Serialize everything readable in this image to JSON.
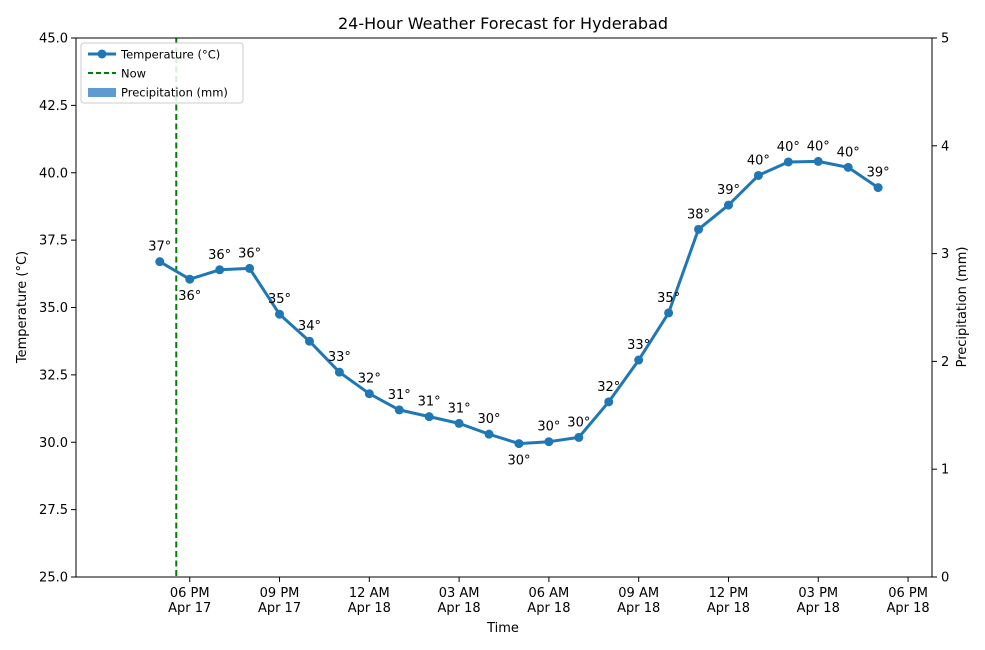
{
  "chart_data": {
    "type": "line",
    "title": "24-Hour Weather Forecast for Hyderabad",
    "xlabel": "Time",
    "ylabel": "Temperature (°C)",
    "ylabel_right": "Precipitation (mm)",
    "ylim": [
      25,
      45
    ],
    "ylim_right": [
      0,
      5
    ],
    "y_ticks": [
      "25.0",
      "27.5",
      "30.0",
      "32.5",
      "35.0",
      "37.5",
      "40.0",
      "42.5",
      "45.0"
    ],
    "y_tick_values": [
      25,
      27.5,
      30,
      32.5,
      35,
      37.5,
      40,
      42.5,
      45
    ],
    "y_right_ticks": [
      "0",
      "1",
      "2",
      "3",
      "4",
      "5"
    ],
    "y_right_tick_values": [
      0,
      1,
      2,
      3,
      4,
      5
    ],
    "x_ticks": [
      {
        "hour": 18,
        "time": "06 PM",
        "date": "Apr 17"
      },
      {
        "hour": 21,
        "time": "09 PM",
        "date": "Apr 17"
      },
      {
        "hour": 24,
        "time": "12 AM",
        "date": "Apr 18"
      },
      {
        "hour": 27,
        "time": "03 AM",
        "date": "Apr 18"
      },
      {
        "hour": 30,
        "time": "06 AM",
        "date": "Apr 18"
      },
      {
        "hour": 33,
        "time": "09 AM",
        "date": "Apr 18"
      },
      {
        "hour": 36,
        "time": "12 PM",
        "date": "Apr 18"
      },
      {
        "hour": 39,
        "time": "03 PM",
        "date": "Apr 18"
      },
      {
        "hour": 42,
        "time": "06 PM",
        "date": "Apr 18"
      }
    ],
    "x_range_hours": [
      14.2,
      42.8
    ],
    "now_hour": 17.55,
    "legend": {
      "placement": "top-left",
      "entries": [
        "Temperature (°C)",
        "Now",
        "Precipitation (mm)"
      ]
    },
    "series": [
      {
        "name": "Temperature (°C)",
        "color": "#1f77b4",
        "hours": [
          17,
          18,
          19,
          20,
          21,
          22,
          23,
          24,
          25,
          26,
          27,
          28,
          29,
          30,
          31,
          32,
          33,
          34,
          35,
          36,
          37,
          38,
          39,
          40,
          41
        ],
        "values": [
          36.7,
          36.05,
          36.4,
          36.45,
          34.75,
          33.75,
          32.6,
          31.8,
          31.2,
          30.95,
          30.7,
          30.3,
          29.95,
          30.02,
          30.18,
          31.5,
          33.05,
          34.8,
          37.9,
          38.8,
          39.9,
          40.4,
          40.42,
          40.2,
          39.45
        ],
        "labels": [
          "37°",
          "36°",
          "36°",
          "36°",
          "35°",
          "34°",
          "33°",
          "32°",
          "31°",
          "31°",
          "31°",
          "30°",
          "30°",
          "30°",
          "30°",
          "32°",
          "33°",
          "35°",
          "38°",
          "39°",
          "40°",
          "40°",
          "40°",
          "40°",
          "39°"
        ],
        "label_below": [
          false,
          true,
          false,
          false,
          false,
          false,
          false,
          false,
          false,
          false,
          false,
          false,
          true,
          false,
          false,
          false,
          false,
          false,
          false,
          false,
          false,
          false,
          false,
          false,
          false
        ]
      }
    ],
    "now_color": "#008000",
    "precipitation_color": "#5e9bd0",
    "precipitation_values": []
  }
}
